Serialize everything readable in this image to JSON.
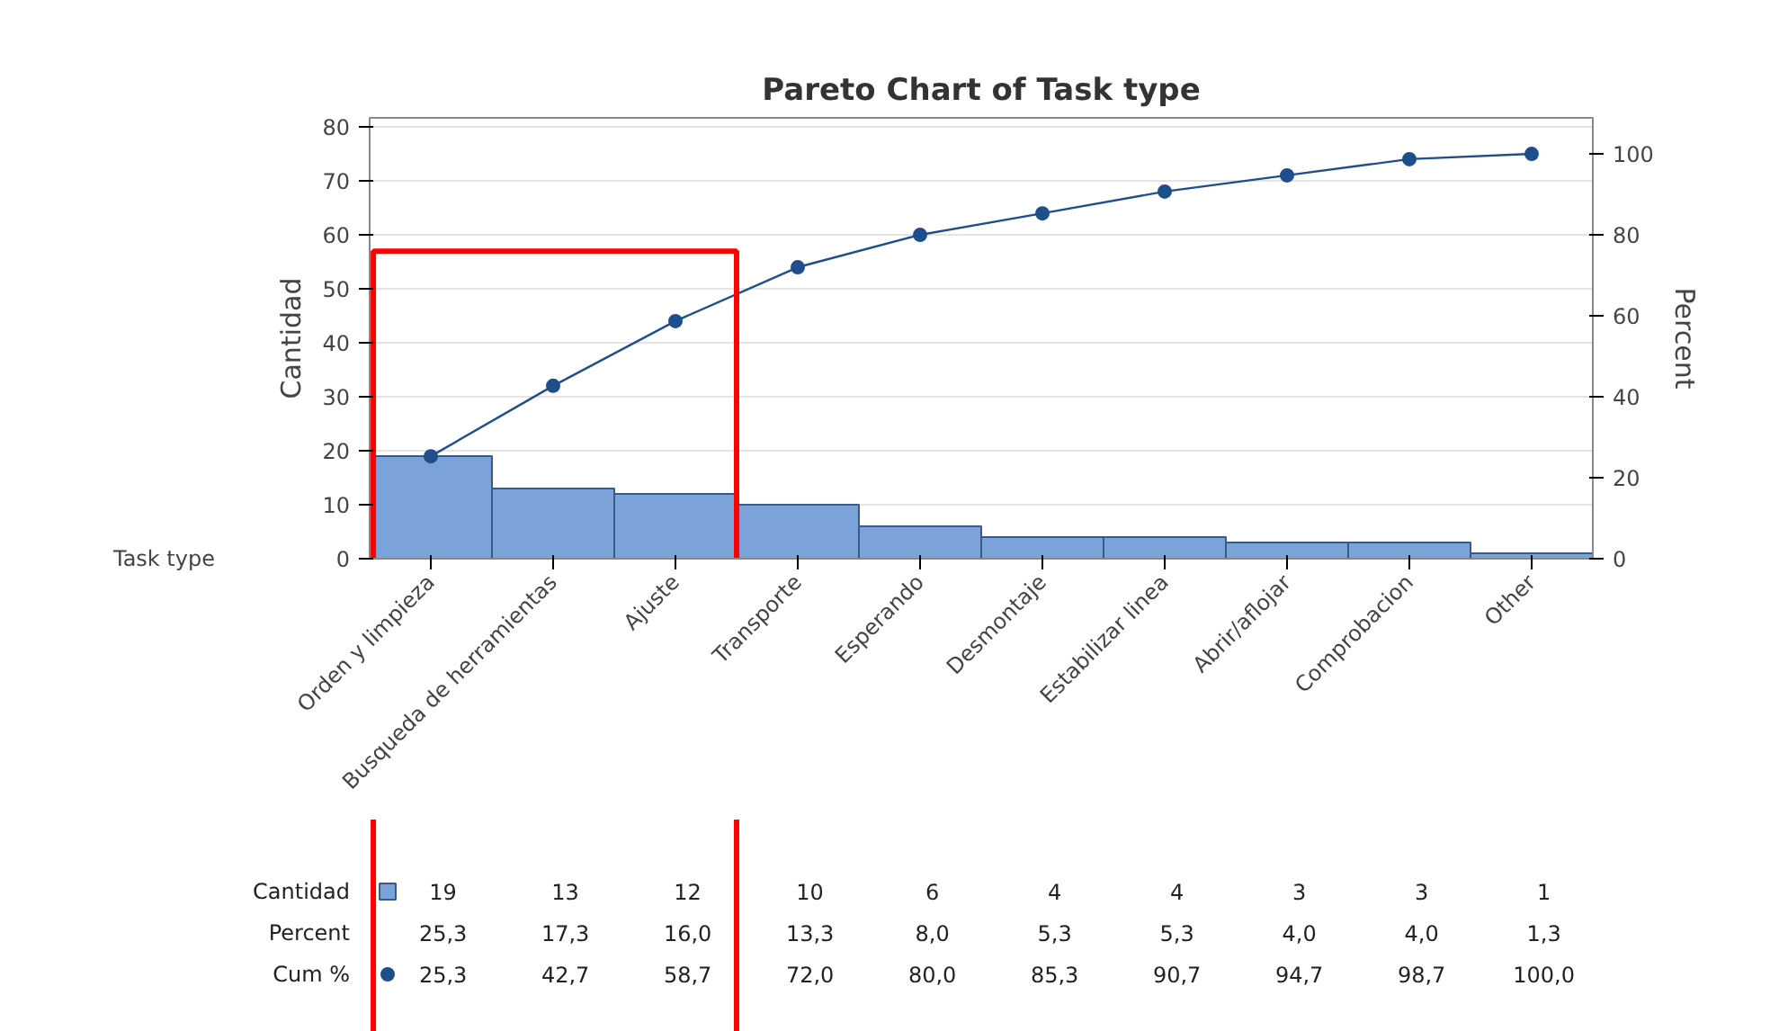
{
  "chart_data": {
    "type": "bar",
    "title": "Pareto Chart of Task type",
    "xlabel": "Task type",
    "ylabel": "Cantidad",
    "y2label": "Percent",
    "categories": [
      "Orden y limpieza",
      "Busqueda de herramientas",
      "Ajuste",
      "Transporte",
      "Esperando",
      "Desmontaje",
      "Estabilizar linea",
      "Abrir/aflojar",
      "Comprobacion",
      "Other"
    ],
    "series": [
      {
        "name": "Cantidad",
        "color": "#7ba3d9",
        "values": [
          19,
          13,
          12,
          10,
          6,
          4,
          4,
          3,
          3,
          1
        ],
        "value_labels": [
          "19",
          "13",
          "12",
          "10",
          "6",
          "4",
          "4",
          "3",
          "3",
          "1"
        ]
      },
      {
        "name": "Cum %",
        "type": "line",
        "axis": "y2",
        "color": "#1f4e8c",
        "values": [
          25.3,
          42.7,
          58.7,
          72.0,
          80.0,
          85.3,
          90.7,
          94.7,
          98.7,
          100.0
        ],
        "value_labels": [
          "25,3",
          "42,7",
          "58,7",
          "72,0",
          "80,0",
          "85,3",
          "90,7",
          "94,7",
          "98,7",
          "100,0"
        ]
      }
    ],
    "annotations": [
      "Percent",
      "25,3",
      "17,3",
      "16,0",
      "13,3",
      "8,0",
      "5,3",
      "5,3",
      "4,0",
      "4,0",
      "1,3"
    ],
    "ylim": [
      0,
      81.7
    ],
    "yticks": [
      0,
      10,
      20,
      30,
      40,
      50,
      60,
      70,
      80
    ],
    "y2lim": [
      0,
      108.9
    ],
    "y2ticks": [
      0,
      20,
      40,
      60,
      80,
      100
    ],
    "grid": "y",
    "marker": "circle",
    "line_style": "solid",
    "legend": "bottom left"
  }
}
